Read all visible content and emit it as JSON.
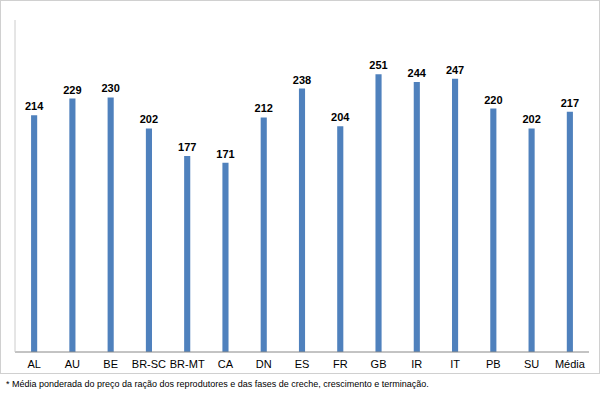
{
  "chart_data": {
    "type": "bar",
    "categories": [
      "AL",
      "AU",
      "BE",
      "BR-SC",
      "BR-MT",
      "CA",
      "DN",
      "ES",
      "FR",
      "GB",
      "IR",
      "IT",
      "PB",
      "SU",
      "Média"
    ],
    "values": [
      214,
      229,
      230,
      202,
      177,
      171,
      212,
      238,
      204,
      251,
      244,
      247,
      220,
      202,
      217
    ],
    "color": "#4f81bd",
    "ylim": [
      0,
      300
    ],
    "data_labels": true,
    "tick_labels": "x",
    "grid": false,
    "annotations": [
      "* Média ponderada do preço da ração dos reprodutores e das fases de creche, crescimento e terminação."
    ]
  }
}
